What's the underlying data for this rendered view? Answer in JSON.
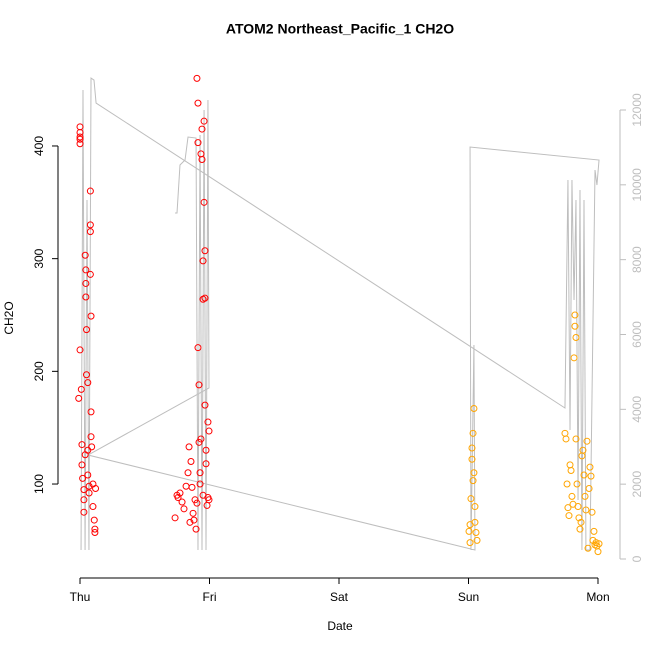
{
  "chart_data": {
    "type": "scatter",
    "title": "ATOM2 Northeast_Pacific_1 CH2O",
    "x_label": "Date",
    "y_label": "CH2O",
    "xlim": [
      -0.17,
      4.17
    ],
    "ylim": [
      16.6,
      476.3
    ],
    "y2lim": [
      -508,
      13336
    ],
    "xticks": [
      {
        "value": 0,
        "label": "Thu"
      },
      {
        "value": 1,
        "label": "Fri"
      },
      {
        "value": 2,
        "label": "Sat"
      },
      {
        "value": 3,
        "label": "Sun"
      },
      {
        "value": 4,
        "label": "Mon"
      }
    ],
    "yticks": [
      100,
      200,
      300,
      400
    ],
    "y2ticks": [
      0,
      2000,
      4000,
      6000,
      8000,
      10000,
      12000
    ],
    "series": [
      {
        "color": "#ff0000",
        "x": [
          0,
          0,
          0,
          0,
          0,
          0,
          -0.01,
          0.01,
          0.015,
          0.015,
          0.02,
          0.03,
          0.03,
          0.03,
          0.04,
          0.04,
          0.045,
          0.045,
          0.045,
          0.05,
          0.05,
          0.06,
          0.06,
          0.06,
          0.07,
          0.07,
          0.08,
          0.08,
          0.08,
          0.08,
          0.085,
          0.085,
          0.085,
          0.09,
          0.1,
          0.1,
          0.11,
          0.115,
          0.115,
          0.12,
          0.734,
          0.749,
          0.757,
          0.772,
          0.788,
          0.803,
          0.819,
          0.834,
          0.842,
          0.849,
          0.857,
          0.865,
          0.873,
          0.88,
          0.888,
          0.896,
          0.903,
          0.903,
          0.911,
          0.911,
          0.911,
          0.919,
          0.919,
          0.927,
          0.927,
          0.934,
          0.934,
          0.942,
          0.942,
          0.95,
          0.95,
          0.95,
          0.958,
          0.958,
          0.965,
          0.965,
          0.965,
          0.973,
          0.973,
          0.981,
          0.988,
          0.988,
          0.996,
          0.996
        ],
        "values": [
          417,
          412,
          408,
          406,
          402,
          219,
          176,
          184,
          135,
          117,
          105,
          95,
          86,
          75,
          126,
          303,
          290,
          278,
          266,
          237,
          197,
          190,
          130,
          108,
          98,
          92,
          360,
          330,
          324,
          286,
          249,
          164,
          142,
          133,
          100,
          80,
          68,
          60,
          57,
          96,
          70,
          90,
          88,
          92,
          84,
          78,
          98,
          110,
          133,
          66,
          120,
          97,
          74,
          68,
          86,
          60,
          83,
          460,
          438,
          403,
          221,
          188,
          137,
          110,
          100,
          393,
          140,
          415,
          388,
          298,
          264,
          90,
          422,
          350,
          307,
          265,
          170,
          130,
          118,
          81,
          88,
          155,
          147,
          86
        ]
      },
      {
        "color": "#ffa500",
        "x": [
          3.004,
          3.012,
          3.012,
          3.019,
          3.027,
          3.027,
          3.035,
          3.035,
          3.042,
          3.042,
          3.05,
          3.05,
          3.058,
          3.066,
          3.745,
          3.753,
          3.761,
          3.768,
          3.776,
          3.784,
          3.792,
          3.799,
          3.807,
          3.815,
          3.822,
          3.822,
          3.83,
          3.83,
          3.838,
          3.846,
          3.853,
          3.861,
          3.869,
          3.876,
          3.884,
          3.892,
          3.9,
          3.907,
          3.915,
          3.923,
          3.931,
          3.938,
          3.946,
          3.954,
          3.961,
          3.969,
          3.977,
          3.985,
          3.992,
          4.0,
          4.008
        ],
        "values": [
          58,
          64,
          48,
          87,
          132,
          122,
          145,
          103,
          167,
          110,
          66,
          80,
          57,
          50,
          145,
          140,
          100,
          79,
          72,
          117,
          112,
          89,
          82,
          212,
          250,
          240,
          230,
          140,
          100,
          80,
          70,
          60,
          66,
          125,
          130,
          108,
          89,
          77,
          138,
          43,
          96,
          115,
          107,
          75,
          50,
          58,
          46,
          48,
          45,
          40,
          47
        ]
      },
      {
        "type": "line",
        "axis": "y2",
        "color": "#bebebe",
        "x": [
          0.008,
          0.023,
          0.039,
          0.054,
          0.069,
          0.085,
          0.108,
          0.124,
          3.745,
          3.768,
          3.784,
          3.799,
          3.815,
          3.83,
          3.846,
          3.861,
          3.876,
          3.892,
          3.907,
          3.938,
          3.977,
          3.992,
          4.008,
          3.012,
          3.019,
          3.042,
          3.05,
          0.062,
          0.996,
          0.988,
          0.973,
          0.958,
          0.942,
          0.927,
          0.911,
          0.896,
          0.834,
          0.811,
          0.772,
          0.749,
          0.734
        ],
        "values": [
          240,
          12533,
          240,
          9594,
          240,
          12854,
          12800,
          12186,
          4035,
          10128,
          3447,
          10128,
          6921,
          9594,
          1577,
          9861,
          240,
          9594,
          240,
          240,
          10396,
          9995,
          10663,
          11010,
          240,
          5719,
          240,
          2779,
          4570,
          12266,
          240,
          11999,
          240,
          11331,
          240,
          11251,
          11278,
          10663,
          10530,
          9246,
          9246
        ]
      }
    ]
  }
}
